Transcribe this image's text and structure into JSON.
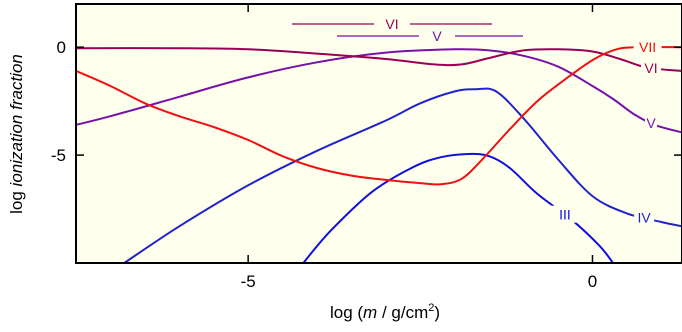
{
  "chart_data": {
    "type": "line",
    "xlabel": {
      "prefix": "log (",
      "var": "m",
      "mid": " / g/cm",
      "sup": "2",
      "suffix": ")"
    },
    "ylabel": {
      "prefix": "log ",
      "italic": "ionization fraction"
    },
    "xlim": [
      -7.5,
      1.3
    ],
    "ylim": [
      -10,
      2
    ],
    "x_ticks": [
      {
        "value": -5,
        "label": "-5"
      },
      {
        "value": 0,
        "label": "0"
      }
    ],
    "y_ticks": [
      {
        "value": 0,
        "label": "0"
      },
      {
        "value": -5,
        "label": "-5"
      }
    ],
    "plot_background": "#ffffee",
    "grid": false,
    "series": [
      {
        "name": "III",
        "color": "#1010dd",
        "points": [
          [
            -4.2,
            -10.0
          ],
          [
            -3.8,
            -8.5
          ],
          [
            -3.2,
            -6.7
          ],
          [
            -2.6,
            -5.55
          ],
          [
            -2.2,
            -5.1
          ],
          [
            -1.8,
            -4.95
          ],
          [
            -1.5,
            -5.05
          ],
          [
            -1.2,
            -5.6
          ],
          [
            -0.8,
            -6.8
          ],
          [
            -0.3,
            -8.0
          ],
          [
            0.1,
            -9.2
          ],
          [
            0.3,
            -10.0
          ]
        ],
        "label_x": -0.4
      },
      {
        "name": "IV",
        "color": "#2222cc",
        "points": [
          [
            -6.8,
            -10.0
          ],
          [
            -6.0,
            -8.3
          ],
          [
            -5.0,
            -6.4
          ],
          [
            -4.0,
            -4.8
          ],
          [
            -3.0,
            -3.4
          ],
          [
            -2.5,
            -2.6
          ],
          [
            -2.0,
            -2.05
          ],
          [
            -1.7,
            -1.95
          ],
          [
            -1.4,
            -2.05
          ],
          [
            -1.0,
            -3.3
          ],
          [
            -0.5,
            -5.2
          ],
          [
            0.0,
            -6.9
          ],
          [
            0.5,
            -7.7
          ],
          [
            1.0,
            -8.1
          ],
          [
            1.3,
            -8.3
          ]
        ],
        "label_x": 0.75
      },
      {
        "name": "V",
        "color": "#7711aa",
        "points": [
          [
            -7.5,
            -3.6
          ],
          [
            -7.0,
            -3.2
          ],
          [
            -6.0,
            -2.3
          ],
          [
            -5.0,
            -1.4
          ],
          [
            -4.0,
            -0.7
          ],
          [
            -3.0,
            -0.25
          ],
          [
            -2.0,
            -0.1
          ],
          [
            -1.5,
            -0.15
          ],
          [
            -1.0,
            -0.4
          ],
          [
            -0.5,
            -0.9
          ],
          [
            0.0,
            -1.8
          ],
          [
            0.3,
            -2.4
          ],
          [
            0.6,
            -3.1
          ],
          [
            0.9,
            -3.6
          ],
          [
            1.3,
            -3.95
          ]
        ],
        "label_x": 0.85
      },
      {
        "name": "VI",
        "color": "#990055",
        "points": [
          [
            -7.5,
            -0.05
          ],
          [
            -6.0,
            -0.05
          ],
          [
            -5.0,
            -0.1
          ],
          [
            -4.0,
            -0.3
          ],
          [
            -3.0,
            -0.55
          ],
          [
            -2.3,
            -0.8
          ],
          [
            -1.9,
            -0.8
          ],
          [
            -1.5,
            -0.5
          ],
          [
            -1.0,
            -0.15
          ],
          [
            -0.5,
            -0.1
          ],
          [
            0.0,
            -0.2
          ],
          [
            0.4,
            -0.55
          ],
          [
            0.8,
            -0.95
          ],
          [
            1.3,
            -1.1
          ]
        ],
        "label_x": 0.85
      },
      {
        "name": "VII",
        "color": "#ee1111",
        "points": [
          [
            -7.5,
            -1.1
          ],
          [
            -7.0,
            -1.8
          ],
          [
            -6.5,
            -2.6
          ],
          [
            -6.0,
            -3.2
          ],
          [
            -5.5,
            -3.7
          ],
          [
            -5.0,
            -4.3
          ],
          [
            -4.5,
            -5.05
          ],
          [
            -4.0,
            -5.6
          ],
          [
            -3.5,
            -5.95
          ],
          [
            -3.0,
            -6.15
          ],
          [
            -2.5,
            -6.3
          ],
          [
            -2.2,
            -6.35
          ],
          [
            -1.9,
            -6.1
          ],
          [
            -1.6,
            -5.2
          ],
          [
            -1.2,
            -3.8
          ],
          [
            -0.8,
            -2.5
          ],
          [
            -0.4,
            -1.5
          ],
          [
            0.0,
            -0.6
          ],
          [
            0.3,
            -0.15
          ],
          [
            0.6,
            0.0
          ],
          [
            1.3,
            0.0
          ]
        ],
        "label_x": 0.8
      }
    ],
    "legend_lines": [
      {
        "label": "VI",
        "color": "#990055"
      },
      {
        "label": "V",
        "color": "#7711aa"
      }
    ]
  }
}
